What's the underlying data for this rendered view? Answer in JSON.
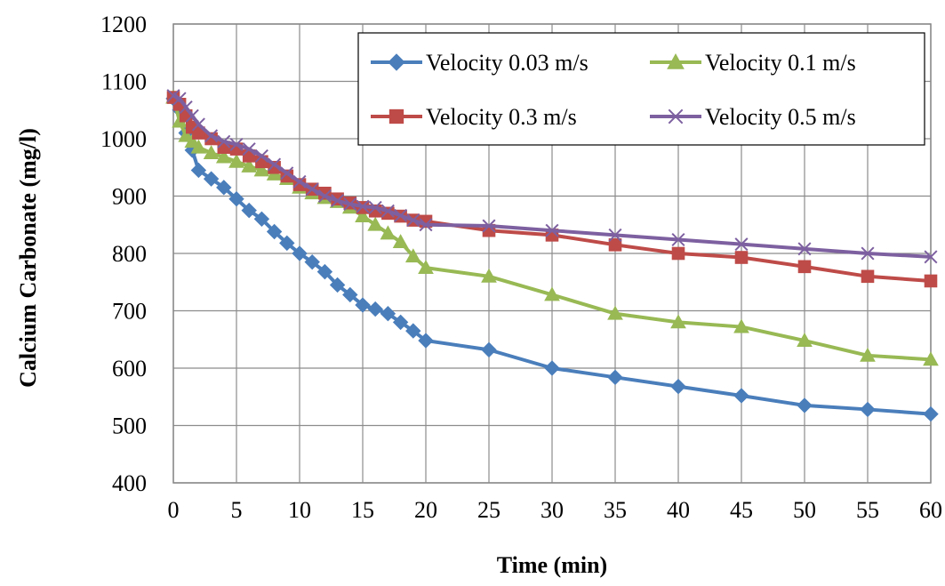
{
  "chart_data": {
    "type": "line",
    "title": "",
    "xlabel": "Time (min)",
    "ylabel": "Calcium Carbonate (mg/l)",
    "xlim": [
      0,
      60
    ],
    "ylim": [
      400,
      1200
    ],
    "xticks": [
      0,
      5,
      10,
      15,
      20,
      25,
      30,
      35,
      40,
      45,
      50,
      55,
      60
    ],
    "yticks": [
      400,
      500,
      600,
      700,
      800,
      900,
      1000,
      1100,
      1200
    ],
    "grid": true,
    "legend_position": "top-right",
    "series": [
      {
        "name": "Velocity 0.03 m/s",
        "color": "#4a7ebb",
        "marker": "diamond",
        "x": [
          0,
          0.5,
          1,
          1.5,
          2,
          3,
          4,
          5,
          6,
          7,
          8,
          9,
          10,
          11,
          12,
          13,
          14,
          15,
          16,
          17,
          18,
          19,
          20,
          25,
          30,
          35,
          40,
          45,
          50,
          55,
          60
        ],
        "y": [
          1070,
          1050,
          1010,
          980,
          945,
          930,
          915,
          895,
          875,
          860,
          838,
          818,
          800,
          785,
          768,
          745,
          728,
          710,
          703,
          695,
          680,
          665,
          648,
          632,
          600,
          584,
          568,
          552,
          535,
          528,
          520
        ]
      },
      {
        "name": "Velocity 0.1 m/s",
        "color": "#98b954",
        "marker": "triangle",
        "x": [
          0,
          0.5,
          1,
          1.5,
          2,
          3,
          4,
          5,
          6,
          7,
          8,
          9,
          10,
          11,
          12,
          13,
          14,
          15,
          16,
          17,
          18,
          19,
          20,
          25,
          30,
          35,
          40,
          45,
          50,
          55,
          60
        ],
        "y": [
          1072,
          1030,
          1005,
          995,
          985,
          975,
          968,
          960,
          952,
          945,
          938,
          930,
          915,
          905,
          897,
          890,
          880,
          865,
          850,
          835,
          820,
          795,
          775,
          760,
          728,
          695,
          680,
          672,
          648,
          622,
          615
        ]
      },
      {
        "name": "Velocity 0.3 m/s",
        "color": "#be4b48",
        "marker": "square",
        "x": [
          0,
          0.5,
          1,
          1.5,
          2,
          3,
          4,
          5,
          6,
          7,
          8,
          9,
          10,
          11,
          12,
          13,
          14,
          15,
          16,
          17,
          18,
          19,
          20,
          25,
          30,
          35,
          40,
          45,
          50,
          55,
          60
        ],
        "y": [
          1072,
          1060,
          1040,
          1020,
          1010,
          1000,
          985,
          982,
          970,
          960,
          950,
          935,
          920,
          912,
          905,
          895,
          888,
          880,
          874,
          870,
          865,
          858,
          856,
          840,
          832,
          815,
          800,
          793,
          777,
          760,
          752
        ]
      },
      {
        "name": "Velocity 0.5 m/s",
        "color": "#7d60a0",
        "marker": "x",
        "x": [
          0,
          0.5,
          1,
          1.5,
          2,
          3,
          4,
          5,
          6,
          7,
          8,
          9,
          10,
          11,
          12,
          13,
          14,
          15,
          16,
          17,
          18,
          19,
          20,
          25,
          30,
          35,
          40,
          45,
          50,
          55,
          60
        ],
        "y": [
          1075,
          1070,
          1055,
          1040,
          1025,
          1005,
          995,
          990,
          982,
          970,
          955,
          940,
          925,
          912,
          900,
          892,
          886,
          882,
          880,
          874,
          866,
          858,
          850,
          848,
          840,
          832,
          824,
          816,
          808,
          800,
          794
        ]
      }
    ]
  }
}
